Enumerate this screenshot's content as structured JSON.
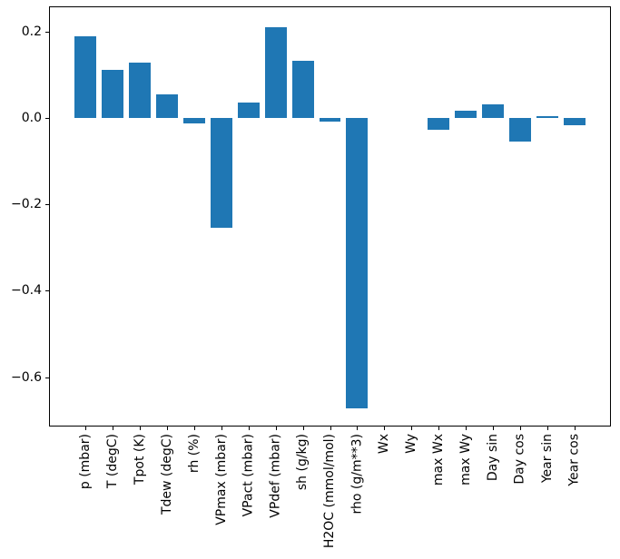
{
  "figure": {
    "background": "#ffffff"
  },
  "chart_data": {
    "type": "bar",
    "title": "",
    "xlabel": "",
    "ylabel": "",
    "categories": [
      "p (mbar)",
      "T (degC)",
      "Tpot (K)",
      "Tdew (degC)",
      "rh (%)",
      "VPmax (mbar)",
      "VPact (mbar)",
      "VPdef (mbar)",
      "sh (g/kg)",
      "H2OC (mmol/mol)",
      "rho (g/m**3)",
      "Wx",
      "Wy",
      "max Wx",
      "max Wy",
      "Day sin",
      "Day cos",
      "Year sin",
      "Year cos"
    ],
    "values": [
      0.188,
      0.11,
      0.128,
      0.055,
      -0.013,
      -0.255,
      0.036,
      0.21,
      0.131,
      -0.009,
      -0.672,
      0.0,
      0.0,
      -0.028,
      0.016,
      0.032,
      -0.054,
      0.003,
      -0.017
    ],
    "bar_color": "#1f77b4",
    "axis_color": "#000000",
    "text_color": "#000000",
    "yticks": [
      0.2,
      0.0,
      -0.2,
      -0.4,
      -0.6
    ],
    "ytick_labels": [
      "0.2",
      "0.0",
      "−0.2",
      "−0.4",
      "−0.6"
    ],
    "ylim": [
      -0.714,
      0.258
    ],
    "xlim": [
      -1.34,
      19.34
    ],
    "bar_width": 0.8,
    "x_tick_label_rotation": 90,
    "grid": false,
    "legend": null
  }
}
